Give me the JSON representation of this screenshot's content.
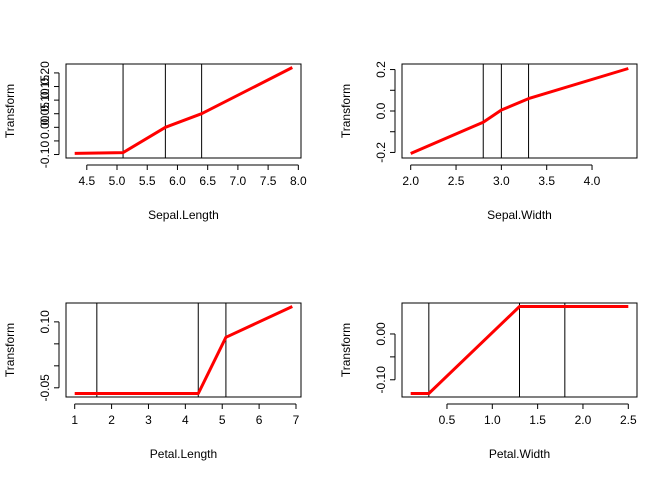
{
  "chart_data": [
    {
      "type": "line",
      "xlabel": "Sepal.Length",
      "ylabel": "Transform",
      "xlim": [
        4.3,
        7.9
      ],
      "ylim": [
        -0.1,
        0.22
      ],
      "xticks": [
        4.5,
        5.0,
        5.5,
        6.0,
        6.5,
        7.0,
        7.5,
        8.0
      ],
      "xtick_labels": [
        "4.5",
        "5.0",
        "5.5",
        "6.0",
        "6.5",
        "7.0",
        "7.5",
        "8.0"
      ],
      "yticks": [
        -0.1,
        -0.05,
        0.0,
        0.05,
        0.1,
        0.15,
        0.2
      ],
      "ytick_labels": [
        "-0.10",
        "",
        "0.00",
        "0.05",
        "0.10",
        "0.15",
        "0.20"
      ],
      "knots": [
        5.1,
        5.8,
        6.4
      ],
      "series": [
        {
          "color": "#ff0000",
          "x": [
            4.3,
            5.1,
            5.8,
            6.4,
            7.9
          ],
          "y": [
            -0.096,
            -0.093,
            0.0,
            0.05,
            0.22
          ]
        }
      ]
    },
    {
      "type": "line",
      "xlabel": "Sepal.Width",
      "ylabel": "Transform",
      "xlim": [
        2.0,
        4.4
      ],
      "ylim": [
        -0.21,
        0.21
      ],
      "xticks": [
        2.0,
        2.5,
        3.0,
        3.5,
        4.0
      ],
      "xtick_labels": [
        "2.0",
        "2.5",
        "3.0",
        "3.5",
        "4.0"
      ],
      "yticks": [
        -0.2,
        -0.1,
        0.0,
        0.1,
        0.2
      ],
      "ytick_labels": [
        "-0.2",
        "",
        "0.0",
        "",
        "0.2"
      ],
      "knots": [
        2.8,
        3.0,
        3.3
      ],
      "series": [
        {
          "color": "#ff0000",
          "x": [
            2.0,
            2.8,
            3.0,
            3.3,
            4.4
          ],
          "y": [
            -0.205,
            -0.054,
            0.005,
            0.06,
            0.205
          ]
        }
      ]
    },
    {
      "type": "line",
      "xlabel": "Petal.Length",
      "ylabel": "Transform",
      "xlim": [
        1.0,
        6.9
      ],
      "ylim": [
        -0.063,
        0.135
      ],
      "xticks": [
        1,
        2,
        3,
        4,
        5,
        6,
        7
      ],
      "xtick_labels": [
        "1",
        "2",
        "3",
        "4",
        "5",
        "6",
        "7"
      ],
      "yticks": [
        -0.05,
        0.0,
        0.05,
        0.1
      ],
      "ytick_labels": [
        "-0.05",
        "",
        "",
        "0.10"
      ],
      "knots": [
        1.6,
        4.35,
        5.1
      ],
      "series": [
        {
          "color": "#ff0000",
          "x": [
            1.0,
            4.35,
            5.1,
            6.9
          ],
          "y": [
            -0.063,
            -0.063,
            0.065,
            0.135
          ]
        }
      ]
    },
    {
      "type": "line",
      "xlabel": "Petal.Width",
      "ylabel": "Transform",
      "xlim": [
        0.1,
        2.5
      ],
      "ylim": [
        -0.13,
        0.06
      ],
      "xticks": [
        0.5,
        1.0,
        1.5,
        2.0,
        2.5
      ],
      "xtick_labels": [
        "0.5",
        "1.0",
        "1.5",
        "2.0",
        "2.5"
      ],
      "yticks": [
        -0.1,
        -0.05,
        0.0
      ],
      "ytick_labels": [
        "-0.10",
        "",
        "0.00"
      ],
      "knots": [
        0.3,
        1.3,
        1.8
      ],
      "series": [
        {
          "color": "#ff0000",
          "x": [
            0.1,
            0.3,
            1.3,
            2.5
          ],
          "y": [
            -0.13,
            -0.13,
            0.06,
            0.06
          ]
        }
      ]
    }
  ]
}
